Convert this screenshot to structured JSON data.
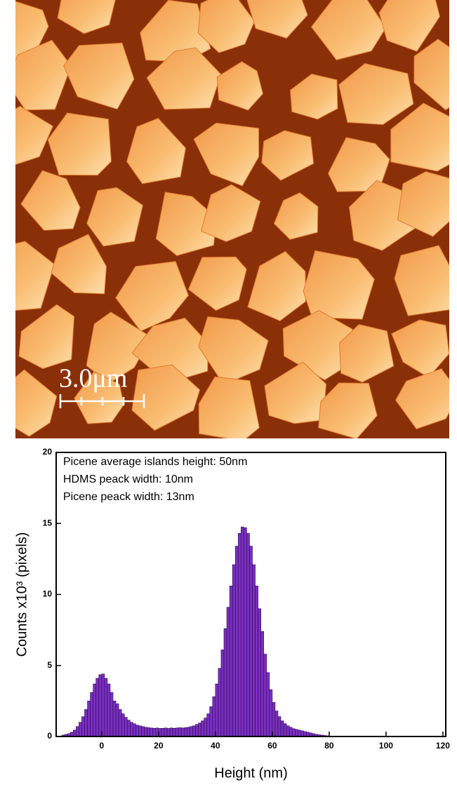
{
  "image": {
    "scale_bar": "3.0μm"
  },
  "chart_data": {
    "type": "histogram",
    "annotations": [
      "Picene average islands height: 50nm",
      "HDMS peack width: 10nm",
      "Picene peack width: 13nm"
    ],
    "x_label": "Height (nm)",
    "y_label": "Counts x10³ (pixels)",
    "bins": [
      -14,
      -13,
      -12,
      -11,
      -10,
      -9,
      -8,
      -7,
      -6,
      -5,
      -4,
      -3,
      -2,
      -1,
      0,
      1,
      2,
      3,
      4,
      5,
      6,
      7,
      8,
      9,
      10,
      11,
      12,
      13,
      14,
      15,
      16,
      17,
      18,
      19,
      20,
      21,
      22,
      23,
      24,
      25,
      26,
      27,
      28,
      29,
      30,
      31,
      32,
      33,
      34,
      35,
      36,
      37,
      38,
      39,
      40,
      41,
      42,
      43,
      44,
      45,
      46,
      47,
      48,
      49,
      50,
      51,
      52,
      53,
      54,
      55,
      56,
      57,
      58,
      59,
      60,
      61,
      62,
      63,
      64,
      65,
      66,
      67,
      68,
      69,
      70,
      71,
      72,
      73,
      74,
      75,
      76,
      77,
      78,
      79,
      80
    ],
    "values": [
      0.1,
      0.15,
      0.2,
      0.3,
      0.45,
      0.7,
      1.0,
      1.4,
      1.9,
      2.5,
      3.1,
      3.7,
      4.1,
      4.35,
      4.4,
      4.1,
      3.7,
      3.1,
      2.5,
      2.3,
      1.9,
      1.6,
      1.35,
      1.15,
      1.0,
      0.9,
      0.8,
      0.75,
      0.7,
      0.65,
      0.62,
      0.6,
      0.58,
      0.6,
      0.57,
      0.58,
      0.6,
      0.57,
      0.6,
      0.58,
      0.6,
      0.62,
      0.6,
      0.62,
      0.65,
      0.7,
      0.75,
      0.85,
      0.95,
      1.1,
      1.3,
      1.6,
      2.1,
      2.8,
      3.7,
      4.8,
      6.1,
      7.6,
      9.1,
      10.6,
      12.1,
      13.4,
      14.3,
      14.75,
      14.7,
      14.3,
      13.4,
      12.1,
      10.6,
      9.0,
      7.4,
      5.8,
      4.5,
      3.3,
      2.4,
      1.8,
      1.4,
      1.1,
      0.9,
      0.75,
      0.65,
      0.55,
      0.5,
      0.45,
      0.4,
      0.35,
      0.3,
      0.25,
      0.2,
      0.15,
      0.12,
      0.1,
      0.07,
      0.05
    ],
    "color": "#7a2fc0",
    "xlim": [
      -16,
      121
    ],
    "xticks": [
      0,
      20,
      40,
      60,
      80,
      100,
      120
    ],
    "ylim": [
      0,
      20
    ],
    "yticks": [
      0,
      5,
      10,
      15,
      20
    ]
  }
}
